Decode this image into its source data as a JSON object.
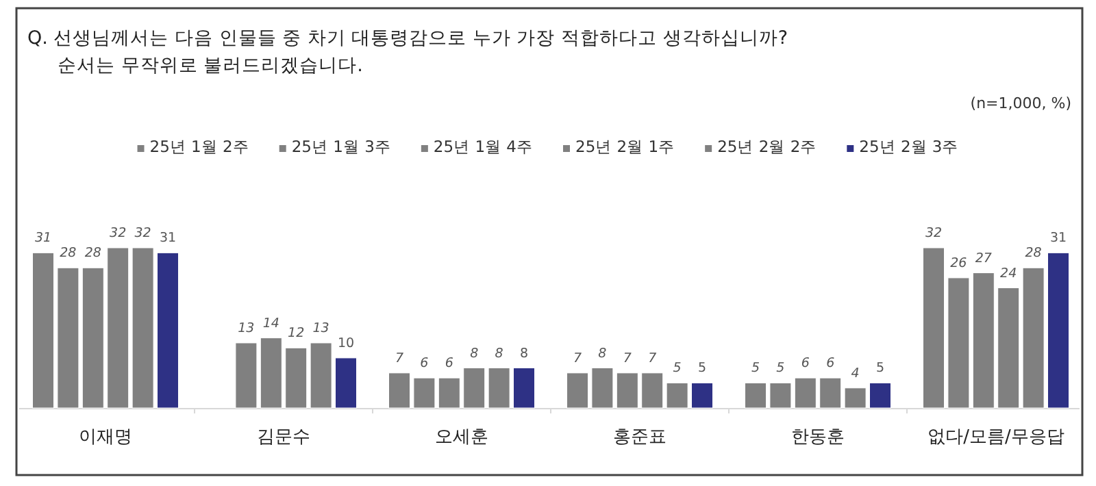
{
  "chart_data": {
    "type": "bar",
    "title": "Q. 선생님께서는 다음 인물들 중 차기 대통령감으로 누가 가장 적합하다고 생각하십니까?",
    "subtitle": "순서는 무작위로 불러드리겠습니다.",
    "annotations": [
      "(n=1,000,  %)"
    ],
    "categories": [
      "이재명",
      "김문수",
      "오세훈",
      "홍준표",
      "한동훈",
      "없다/모름/무응답"
    ],
    "series": [
      {
        "name": "25년 1월 2주",
        "color": "#808080",
        "values": [
          31,
          null,
          7,
          7,
          5,
          32
        ]
      },
      {
        "name": "25년 1월 3주",
        "color": "#808080",
        "values": [
          28,
          13,
          6,
          8,
          5,
          26
        ]
      },
      {
        "name": "25년 1월 4주",
        "color": "#808080",
        "values": [
          28,
          14,
          6,
          7,
          6,
          27
        ]
      },
      {
        "name": "25년 2월 1주",
        "color": "#808080",
        "values": [
          32,
          12,
          8,
          7,
          6,
          24
        ]
      },
      {
        "name": "25년 2월 2주",
        "color": "#808080",
        "values": [
          32,
          13,
          8,
          5,
          4,
          28
        ]
      },
      {
        "name": "25년 2월 3주",
        "color": "#2e3185",
        "values": [
          31,
          10,
          8,
          5,
          5,
          31
        ]
      }
    ],
    "data_labels": true,
    "legend": "top"
  }
}
